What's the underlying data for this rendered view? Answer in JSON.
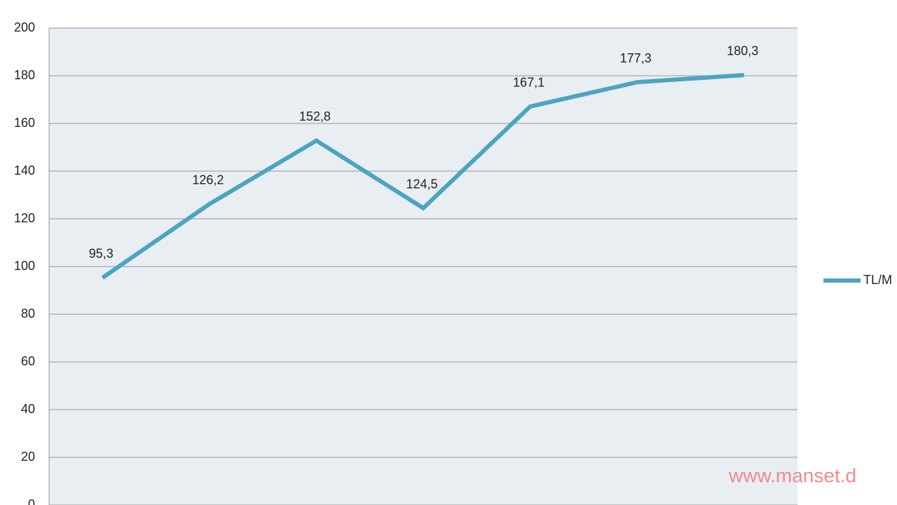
{
  "chart_data": {
    "type": "line",
    "categories": [
      null,
      null,
      null,
      null,
      null,
      null,
      null
    ],
    "series": [
      {
        "name": "TL/M",
        "color": "#4da4c0",
        "values": [
          95.3,
          126.2,
          152.8,
          124.5,
          167.1,
          177.3,
          180.3
        ],
        "value_labels": [
          "95,3",
          "126,2",
          "152,8",
          "124,5",
          "167,1",
          "177,3",
          "180,3"
        ]
      }
    ],
    "ylim": [
      0,
      200
    ],
    "yticks": [
      0,
      20,
      40,
      60,
      80,
      100,
      120,
      140,
      160,
      180,
      200
    ],
    "grid": true,
    "legend": "right",
    "plot_background": "#e9eef3",
    "watermark": "www.manset.d"
  }
}
